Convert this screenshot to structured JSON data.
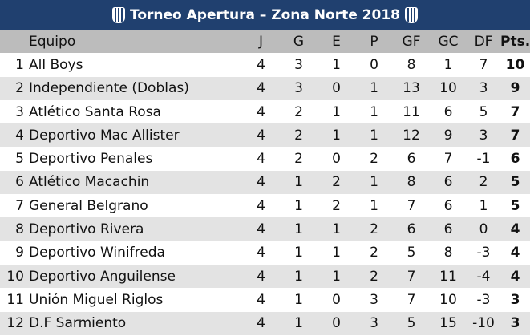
{
  "title": "Torneo Apertura – Zona Norte 2018",
  "headers": {
    "team": "Equipo",
    "j": "J",
    "g": "G",
    "e": "E",
    "p": "P",
    "gf": "GF",
    "gc": "GC",
    "df": "DF",
    "pts": "Pts."
  },
  "rows": [
    {
      "pos": "1",
      "team": "All Boys",
      "j": "4",
      "g": "3",
      "e": "1",
      "p": "0",
      "gf": "8",
      "gc": "1",
      "df": "7",
      "pts": "10"
    },
    {
      "pos": "2",
      "team": "Independiente (Doblas)",
      "j": "4",
      "g": "3",
      "e": "0",
      "p": "1",
      "gf": "13",
      "gc": "10",
      "df": "3",
      "pts": "9"
    },
    {
      "pos": "3",
      "team": "Atlético Santa Rosa",
      "j": "4",
      "g": "2",
      "e": "1",
      "p": "1",
      "gf": "11",
      "gc": "6",
      "df": "5",
      "pts": "7"
    },
    {
      "pos": "4",
      "team": "Deportivo Mac Allister",
      "j": "4",
      "g": "2",
      "e": "1",
      "p": "1",
      "gf": "12",
      "gc": "9",
      "df": "3",
      "pts": "7"
    },
    {
      "pos": "5",
      "team": "Deportivo Penales",
      "j": "4",
      "g": "2",
      "e": "0",
      "p": "2",
      "gf": "6",
      "gc": "7",
      "df": "-1",
      "pts": "6"
    },
    {
      "pos": "6",
      "team": "Atlético Macachin",
      "j": "4",
      "g": "1",
      "e": "2",
      "p": "1",
      "gf": "8",
      "gc": "6",
      "df": "2",
      "pts": "5"
    },
    {
      "pos": "7",
      "team": "General Belgrano",
      "j": "4",
      "g": "1",
      "e": "2",
      "p": "1",
      "gf": "7",
      "gc": "6",
      "df": "1",
      "pts": "5"
    },
    {
      "pos": "8",
      "team": "Deportivo Rivera",
      "j": "4",
      "g": "1",
      "e": "1",
      "p": "2",
      "gf": "6",
      "gc": "6",
      "df": "0",
      "pts": "4"
    },
    {
      "pos": "9",
      "team": "Deportivo Winifreda",
      "j": "4",
      "g": "1",
      "e": "1",
      "p": "2",
      "gf": "5",
      "gc": "8",
      "df": "-3",
      "pts": "4"
    },
    {
      "pos": "10",
      "team": "Deportivo Anguilense",
      "j": "4",
      "g": "1",
      "e": "1",
      "p": "2",
      "gf": "7",
      "gc": "11",
      "df": "-4",
      "pts": "4"
    },
    {
      "pos": "11",
      "team": "Unión Miguel Riglos",
      "j": "4",
      "g": "1",
      "e": "0",
      "p": "3",
      "gf": "7",
      "gc": "10",
      "df": "-3",
      "pts": "3"
    },
    {
      "pos": "12",
      "team": "D.F Sarmiento",
      "j": "4",
      "g": "1",
      "e": "0",
      "p": "3",
      "gf": "5",
      "gc": "15",
      "df": "-10",
      "pts": "3"
    }
  ]
}
